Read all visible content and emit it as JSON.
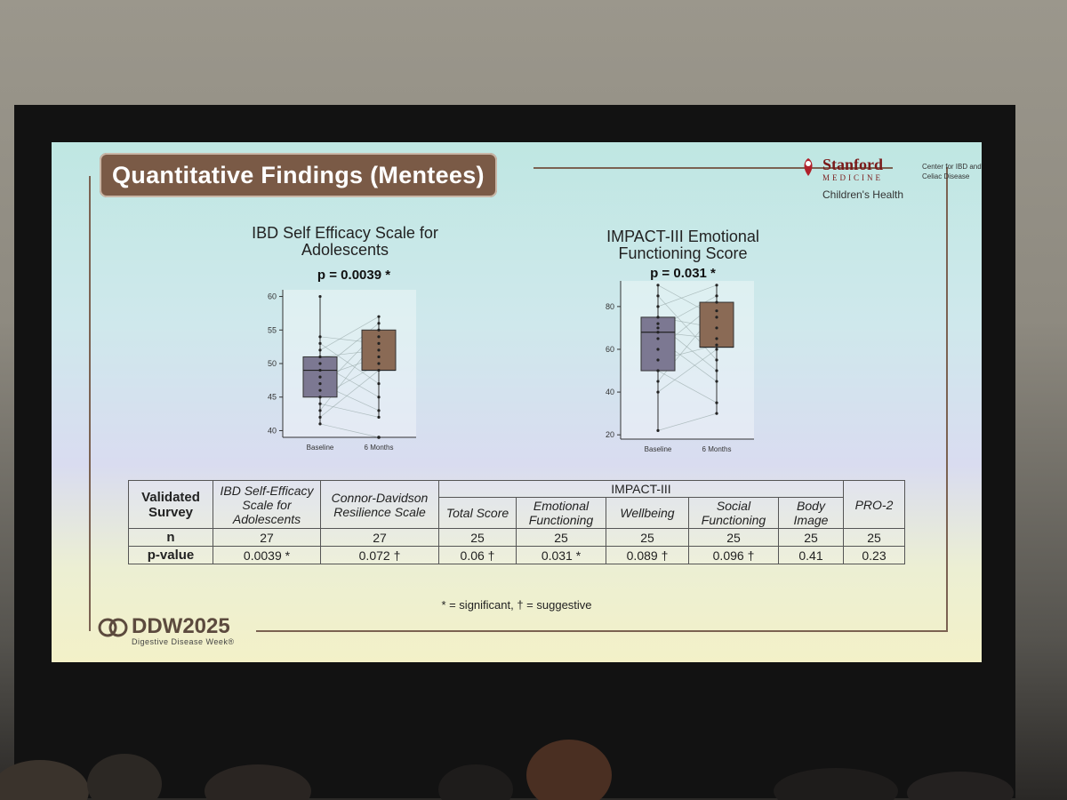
{
  "slide": {
    "title": "Quantitative Findings (Mentees)",
    "org": {
      "name": "Stanford",
      "sub": "MEDICINE",
      "hospital": "Children's Health",
      "center": "Center for IBD and Celiac Disease"
    },
    "footnote": "* = significant, † = suggestive",
    "conference": {
      "name": "DDW2025",
      "subtitle": "Digestive Disease Week®"
    }
  },
  "colors": {
    "title_bg": "#7a5a46",
    "baseline_box": "#7c7892",
    "months_box": "#8a6a55"
  },
  "chart_data": [
    {
      "type": "box",
      "title": "IBD Self Efficacy Scale for Adolescents",
      "annotation": "p = 0.0039 *",
      "categories": [
        "Baseline",
        "6 Months"
      ],
      "ylim": [
        39,
        61
      ],
      "yticks": [
        "40",
        "45",
        "50",
        "55",
        "60"
      ],
      "ytick_values": [
        40,
        45,
        50,
        55,
        60
      ],
      "boxes": [
        {
          "name": "Baseline",
          "min": 41,
          "q1": 45,
          "median": 49,
          "q3": 51,
          "max": 60
        },
        {
          "name": "6 Months",
          "min": 42,
          "q1": 49,
          "median": 49,
          "q3": 55,
          "max": 57,
          "outliers": [
            39
          ]
        }
      ],
      "points_baseline": [
        41,
        42,
        43,
        44,
        45,
        46,
        47,
        48,
        49,
        50,
        51,
        52,
        53,
        54,
        60
      ],
      "points_6months": [
        39,
        42,
        43,
        45,
        47,
        49,
        50,
        51,
        52,
        53,
        54,
        55,
        56,
        57
      ]
    },
    {
      "type": "box",
      "title": "IMPACT-III Emotional Functioning Score",
      "annotation": "p = 0.031 *",
      "categories": [
        "Baseline",
        "6 Months"
      ],
      "ylim": [
        18,
        92
      ],
      "yticks": [
        "20",
        "40",
        "60",
        "80"
      ],
      "ytick_values": [
        20,
        40,
        60,
        80
      ],
      "boxes": [
        {
          "name": "Baseline",
          "min": 22,
          "q1": 50,
          "median": 68,
          "q3": 75,
          "max": 90
        },
        {
          "name": "6 Months",
          "min": 30,
          "q1": 61,
          "median": 61,
          "q3": 82,
          "max": 90
        }
      ],
      "points_baseline": [
        22,
        40,
        45,
        50,
        55,
        60,
        65,
        68,
        70,
        72,
        75,
        80,
        85,
        90
      ],
      "points_6months": [
        30,
        35,
        45,
        50,
        55,
        60,
        62,
        65,
        70,
        75,
        78,
        82,
        85,
        90
      ]
    }
  ],
  "table": {
    "header_group": "IMPACT-III",
    "row_label_header": "Validated Survey",
    "columns": [
      {
        "label": "IBD Self-Efficacy Scale for Adolescents",
        "n": "27",
        "p": "0.0039 *"
      },
      {
        "label": "Connor-Davidson Resilience Scale",
        "n": "27",
        "p": "0.072 †"
      },
      {
        "label": "Total Score",
        "n": "25",
        "p": "0.06 †"
      },
      {
        "label": "Emotional Functioning",
        "n": "25",
        "p": "0.031 *"
      },
      {
        "label": "Wellbeing",
        "n": "25",
        "p": "0.089 †"
      },
      {
        "label": "Social Functioning",
        "n": "25",
        "p": "0.096 †"
      },
      {
        "label": "Body Image",
        "n": "25",
        "p": "0.41"
      },
      {
        "label": "PRO-2",
        "n": "25",
        "p": "0.23"
      }
    ],
    "row_n": "n",
    "row_p": "p-value"
  }
}
